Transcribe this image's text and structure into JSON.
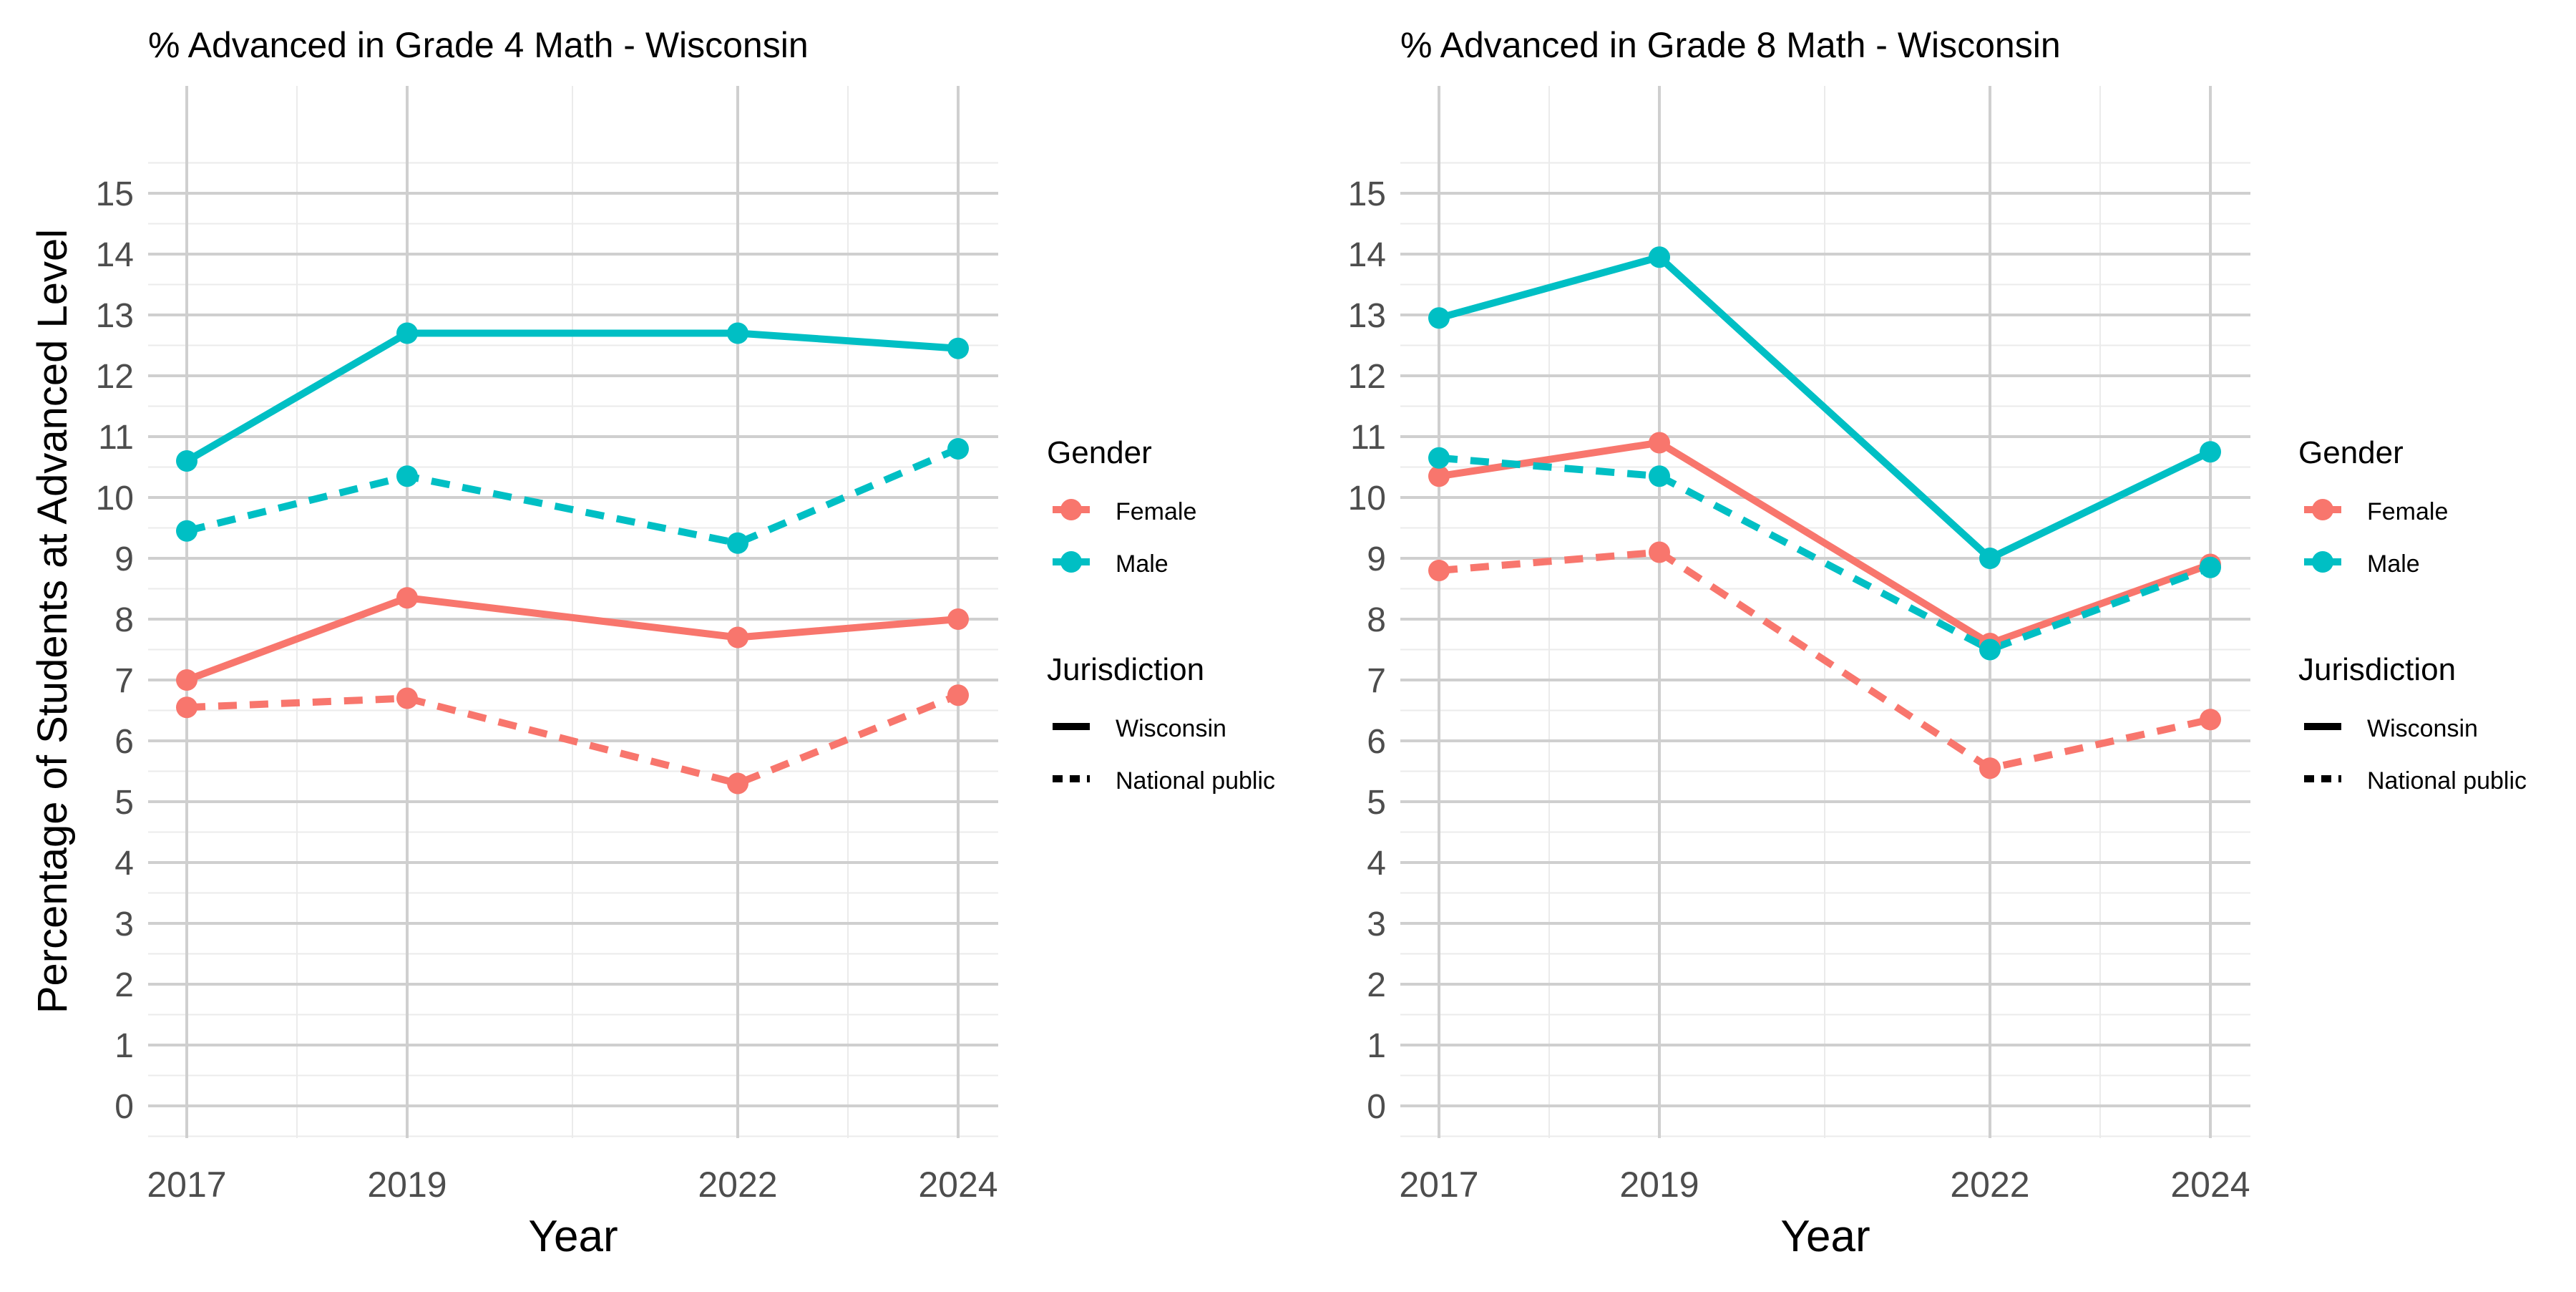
{
  "figure": {
    "ylabel": "Percentage of Students at Advanced Level",
    "xlabel": "Year"
  },
  "legend": {
    "gender_title": "Gender",
    "gender_items": [
      "Female",
      "Male"
    ],
    "jurisdiction_title": "Jurisdiction",
    "jurisdiction_items": [
      "Wisconsin",
      "National public"
    ]
  },
  "colors": {
    "Female": "#F8766D",
    "Male": "#00BFC4",
    "grid_major": "#CFCFCF",
    "grid_minor": "#EBEBEB",
    "text": "#000000",
    "tick_text": "#4D4D4D"
  },
  "chart_data": [
    {
      "type": "line",
      "title": "% Advanced in Grade 4 Math - Wisconsin",
      "xlabel": "Year",
      "ylabel": "Percentage of Students at Advanced Level",
      "x": [
        2017,
        2019,
        2022,
        2024
      ],
      "x_ticks": [
        "2017",
        "2019",
        "2022",
        "2024"
      ],
      "y_ticks": [
        0,
        1,
        2,
        3,
        4,
        5,
        6,
        7,
        8,
        9,
        10,
        11,
        12,
        13,
        14,
        15
      ],
      "ylim": [
        0,
        15
      ],
      "grid": true,
      "legend_position": "right",
      "series": [
        {
          "name": "Female",
          "gender": "Female",
          "jurisdiction": "Wisconsin",
          "values": [
            7.0,
            8.35,
            7.7,
            8.0
          ]
        },
        {
          "name": "Female",
          "gender": "Female",
          "jurisdiction": "National public",
          "values": [
            6.55,
            6.7,
            5.3,
            6.75
          ]
        },
        {
          "name": "Male",
          "gender": "Male",
          "jurisdiction": "Wisconsin",
          "values": [
            10.6,
            12.7,
            12.7,
            12.45
          ]
        },
        {
          "name": "Male",
          "gender": "Male",
          "jurisdiction": "National public",
          "values": [
            9.45,
            10.35,
            9.25,
            10.8
          ]
        }
      ]
    },
    {
      "type": "line",
      "title": "% Advanced in Grade 8 Math - Wisconsin",
      "xlabel": "Year",
      "ylabel": "",
      "x": [
        2017,
        2019,
        2022,
        2024
      ],
      "x_ticks": [
        "2017",
        "2019",
        "2022",
        "2024"
      ],
      "y_ticks": [
        0,
        1,
        2,
        3,
        4,
        5,
        6,
        7,
        8,
        9,
        10,
        11,
        12,
        13,
        14,
        15
      ],
      "ylim": [
        0,
        15
      ],
      "grid": true,
      "legend_position": "right",
      "series": [
        {
          "name": "Female",
          "gender": "Female",
          "jurisdiction": "Wisconsin",
          "values": [
            10.35,
            10.9,
            7.6,
            8.9
          ]
        },
        {
          "name": "Female",
          "gender": "Female",
          "jurisdiction": "National public",
          "values": [
            8.8,
            9.1,
            5.55,
            6.35
          ]
        },
        {
          "name": "Male",
          "gender": "Male",
          "jurisdiction": "Wisconsin",
          "values": [
            12.95,
            13.95,
            9.0,
            10.75
          ]
        },
        {
          "name": "Male",
          "gender": "Male",
          "jurisdiction": "National public",
          "values": [
            10.65,
            10.35,
            7.5,
            8.85
          ]
        }
      ]
    }
  ]
}
